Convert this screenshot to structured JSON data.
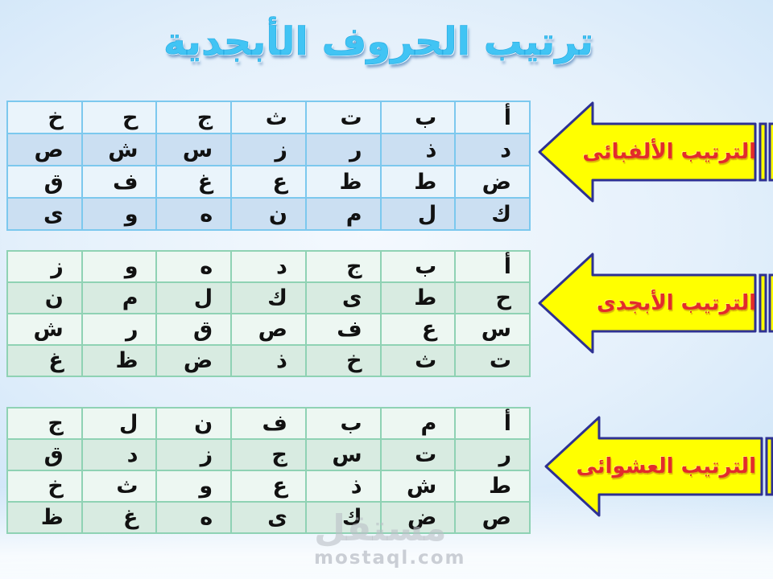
{
  "title": "ترتيب الحروف الأبجدية",
  "tables": [
    {
      "label": "الترتيب الألفبائى",
      "rows": [
        [
          "أ",
          "ب",
          "ت",
          "ث",
          "ج",
          "ح",
          "خ"
        ],
        [
          "د",
          "ذ",
          "ر",
          "ز",
          "س",
          "ش",
          "ص"
        ],
        [
          "ض",
          "ط",
          "ظ",
          "ع",
          "غ",
          "ف",
          "ق"
        ],
        [
          "ك",
          "ل",
          "م",
          "ن",
          "ه",
          "و",
          "ى"
        ]
      ]
    },
    {
      "label": "الترتيب الأبجدى",
      "rows": [
        [
          "أ",
          "ب",
          "ج",
          "د",
          "ه",
          "و",
          "ز"
        ],
        [
          "ح",
          "ط",
          "ى",
          "ك",
          "ل",
          "م",
          "ن"
        ],
        [
          "س",
          "ع",
          "ف",
          "ص",
          "ق",
          "ر",
          "ش"
        ],
        [
          "ت",
          "ث",
          "خ",
          "ذ",
          "ض",
          "ظ",
          "غ"
        ]
      ]
    },
    {
      "label": "الترتيب العشوائى",
      "rows": [
        [
          "أ",
          "م",
          "ب",
          "ف",
          "ن",
          "ل",
          "ج"
        ],
        [
          "ر",
          "ت",
          "س",
          "ج",
          "ز",
          "د",
          "ق"
        ],
        [
          "ط",
          "ش",
          "ذ",
          "ع",
          "و",
          "ث",
          "خ"
        ],
        [
          "ص",
          "ض",
          "ك",
          "ى",
          "ه",
          "غ",
          "ظ"
        ]
      ]
    }
  ],
  "colors": {
    "title_blue": "#41c4f4",
    "arrow_fill": "#ffff00",
    "arrow_border": "#2e3192",
    "arrow_label_red": "#e32b2b",
    "table1_border": "#7cc8ee",
    "table1_row_light": "#eaf4fb",
    "table1_row_dark": "#cbdff2",
    "table23_border": "#8fd2b4",
    "table23_row_light": "#edf7f2",
    "table23_row_dark": "#d8ebe1"
  },
  "watermark": {
    "logo": "مستقل",
    "url": "mostaql.com"
  }
}
